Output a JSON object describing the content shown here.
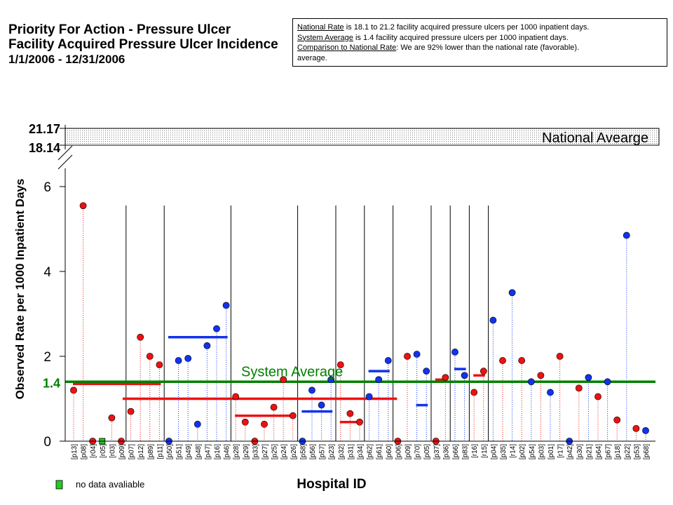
{
  "header": {
    "title_line1": "Priority For Action - Pressure Ulcer",
    "title_line2": "Facility Acquired Pressure Ulcer Incidence",
    "date_range": "1/1/2006 - 12/31/2006"
  },
  "info": {
    "national_label": "National Rate",
    "national_text": " is 18.1 to 21.2 facility acquired pressure ulcers per 1000 inpatient days.",
    "system_label": "System Average",
    "system_text": " is 1.4 facility acquired pressure ulcers per 1000 inpatient days.",
    "comparison_label": "Comparison to National Rate",
    "comparison_text": ":  We are 92% lower than the national rate (favorable).",
    "extra_text": "average."
  },
  "legend": {
    "no_data_label": "no data avaliable",
    "no_data_color": "#22cc22"
  },
  "chart_data": {
    "type": "scatter",
    "xlabel": "Hospital ID",
    "ylabel": "Observed Rate per 1000 Inpatient Days",
    "ylim": [
      0,
      6
    ],
    "yticks": [
      0,
      2,
      4,
      6
    ],
    "broken_axis_labels": [
      "21.17",
      "18.14"
    ],
    "national_band": {
      "low": 18.14,
      "high": 21.17,
      "label": "National Avearge"
    },
    "system_average": {
      "value": 1.4,
      "label": "System Average",
      "tick_label": "1.4",
      "color": "#008000"
    },
    "colors": {
      "red": "#ee1111",
      "blue": "#1133ee"
    },
    "hospitals": [
      {
        "id": "[p13]",
        "value": 1.2,
        "color": "red"
      },
      {
        "id": "[p08]",
        "value": 5.55,
        "color": "red"
      },
      {
        "id": "[r04]",
        "value": 0.0,
        "color": "red"
      },
      {
        "id": "[r05]",
        "value": null,
        "color": "none"
      },
      {
        "id": "[r03]",
        "value": 0.55,
        "color": "red"
      },
      {
        "id": "[p09]",
        "value": 0.0,
        "color": "red"
      },
      {
        "id": "[p07]",
        "value": 0.7,
        "color": "red"
      },
      {
        "id": "[p12]",
        "value": 2.45,
        "color": "red"
      },
      {
        "id": "[p89]",
        "value": 2.0,
        "color": "red"
      },
      {
        "id": "[p11]",
        "value": 1.8,
        "color": "red"
      },
      {
        "id": "[p50]",
        "value": 0.0,
        "color": "blue"
      },
      {
        "id": "[p51]",
        "value": 1.9,
        "color": "blue"
      },
      {
        "id": "[p49]",
        "value": 1.95,
        "color": "blue"
      },
      {
        "id": "[p48]",
        "value": 0.4,
        "color": "blue"
      },
      {
        "id": "[p47]",
        "value": 2.25,
        "color": "blue"
      },
      {
        "id": "[p16]",
        "value": 2.65,
        "color": "blue"
      },
      {
        "id": "[p46]",
        "value": 3.2,
        "color": "blue"
      },
      {
        "id": "[p28]",
        "value": 1.05,
        "color": "red"
      },
      {
        "id": "[p29]",
        "value": 0.45,
        "color": "red"
      },
      {
        "id": "[p33]",
        "value": 0.0,
        "color": "red"
      },
      {
        "id": "[p27]",
        "value": 0.4,
        "color": "red"
      },
      {
        "id": "[p25]",
        "value": 0.8,
        "color": "red"
      },
      {
        "id": "[p24]",
        "value": 1.45,
        "color": "red"
      },
      {
        "id": "[p26]",
        "value": 0.6,
        "color": "red"
      },
      {
        "id": "[p58]",
        "value": 0.0,
        "color": "blue"
      },
      {
        "id": "[p56]",
        "value": 1.2,
        "color": "blue"
      },
      {
        "id": "[p57]",
        "value": 0.85,
        "color": "blue"
      },
      {
        "id": "[p23]",
        "value": 1.45,
        "color": "blue"
      },
      {
        "id": "[p32]",
        "value": 1.8,
        "color": "red"
      },
      {
        "id": "[p31]",
        "value": 0.65,
        "color": "red"
      },
      {
        "id": "[p34]",
        "value": 0.45,
        "color": "red"
      },
      {
        "id": "[p62]",
        "value": 1.05,
        "color": "blue"
      },
      {
        "id": "[p61]",
        "value": 1.45,
        "color": "blue"
      },
      {
        "id": "[p60]",
        "value": 1.9,
        "color": "blue"
      },
      {
        "id": "[p06]",
        "value": 0.0,
        "color": "red"
      },
      {
        "id": "[p09]",
        "value": 2.0,
        "color": "red"
      },
      {
        "id": "[p70]",
        "value": 2.05,
        "color": "blue"
      },
      {
        "id": "[p05]",
        "value": 1.65,
        "color": "blue"
      },
      {
        "id": "[p37]",
        "value": 0.0,
        "color": "red"
      },
      {
        "id": "[p36]",
        "value": 1.5,
        "color": "red"
      },
      {
        "id": "[p66]",
        "value": 2.1,
        "color": "blue"
      },
      {
        "id": "[p83]",
        "value": 1.55,
        "color": "blue"
      },
      {
        "id": "[r16]",
        "value": 1.15,
        "color": "red"
      },
      {
        "id": "[r15]",
        "value": 1.65,
        "color": "red"
      },
      {
        "id": "[p04]",
        "value": 2.85,
        "color": "blue"
      },
      {
        "id": "[p35]",
        "value": 1.9,
        "color": "red"
      },
      {
        "id": "[r14]",
        "value": 3.5,
        "color": "blue"
      },
      {
        "id": "[p02]",
        "value": 1.9,
        "color": "red"
      },
      {
        "id": "[p54]",
        "value": 1.4,
        "color": "blue"
      },
      {
        "id": "[p03]",
        "value": 1.55,
        "color": "red"
      },
      {
        "id": "[p01]",
        "value": 1.15,
        "color": "blue"
      },
      {
        "id": "[r17]",
        "value": 2.0,
        "color": "red"
      },
      {
        "id": "[p42]",
        "value": 0.0,
        "color": "blue"
      },
      {
        "id": "[p30]",
        "value": 1.25,
        "color": "red"
      },
      {
        "id": "[p21]",
        "value": 1.5,
        "color": "blue"
      },
      {
        "id": "[p64]",
        "value": 1.05,
        "color": "red"
      },
      {
        "id": "[p67]",
        "value": 1.4,
        "color": "blue"
      },
      {
        "id": "[p18]",
        "value": 0.5,
        "color": "red"
      },
      {
        "id": "[p22]",
        "value": 4.85,
        "color": "blue"
      },
      {
        "id": "[p53]",
        "value": 0.3,
        "color": "red"
      },
      {
        "id": "[p68]",
        "value": 0.25,
        "color": "blue"
      }
    ],
    "group_averages": [
      {
        "from": "[p13]",
        "to": "[p11]",
        "value": 1.35,
        "color": "red"
      },
      {
        "from": "[p50]",
        "to": "[p46]",
        "value": 2.45,
        "color": "blue"
      },
      {
        "from": "[p28]",
        "to": "[p26]",
        "value": 0.6,
        "color": "red"
      },
      {
        "from": "[p58]",
        "to": "[p23]",
        "value": 0.7,
        "color": "blue"
      },
      {
        "from": "[p32]",
        "to": "[p34]",
        "value": 0.45,
        "color": "red"
      },
      {
        "from": "[p62]",
        "to": "[p60]",
        "value": 1.65,
        "color": "blue"
      },
      {
        "from": "[p06]",
        "to": "[p09]",
        "value": 1.0,
        "color": "red"
      },
      {
        "from": "[p70]",
        "to": "[p05]",
        "value": 0.85,
        "color": "blue"
      },
      {
        "from": "[p37]",
        "to": "[p36]",
        "value": 1.45,
        "color": "red"
      },
      {
        "from": "[p66]",
        "to": "[p83]",
        "value": 1.7,
        "color": "blue"
      },
      {
        "from": "[r16]",
        "to": "[r15]",
        "value": 1.55,
        "color": "red"
      }
    ],
    "group_separators_after": [
      "[p11]",
      "[p46]",
      "[p26]",
      "[p23]",
      "[p34]",
      "[p60]",
      "[p09]",
      "[p05]",
      "[p36]",
      "[p83]",
      "[r15]"
    ]
  }
}
